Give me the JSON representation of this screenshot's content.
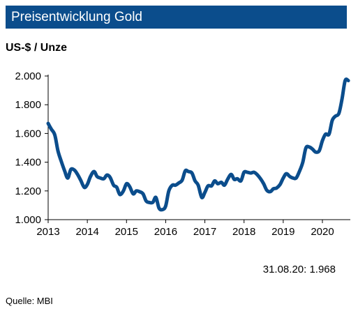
{
  "chart_data": {
    "type": "line",
    "title": "Preisentwicklung Gold",
    "ylabel": "US-$ / Unze",
    "ylim": [
      1000,
      2000
    ],
    "yticks": [
      1000,
      1200,
      1400,
      1600,
      1800,
      2000
    ],
    "ytick_labels": [
      "1.000",
      "1.200",
      "1.400",
      "1.600",
      "1.800",
      "2.000"
    ],
    "xlim": [
      2013.0,
      2020.67
    ],
    "xticks": [
      2013,
      2014,
      2015,
      2016,
      2017,
      2018,
      2019,
      2020
    ],
    "xtick_labels": [
      "2013",
      "2014",
      "2015",
      "2016",
      "2017",
      "2018",
      "2019",
      "2020"
    ],
    "grid": false,
    "legend": "none",
    "series": [
      {
        "color": "#0b4d8c",
        "x": [
          2013.0,
          2013.08,
          2013.17,
          2013.25,
          2013.33,
          2013.42,
          2013.5,
          2013.58,
          2013.67,
          2013.75,
          2013.83,
          2013.92,
          2014.0,
          2014.08,
          2014.17,
          2014.25,
          2014.33,
          2014.42,
          2014.5,
          2014.58,
          2014.67,
          2014.75,
          2014.83,
          2014.92,
          2015.0,
          2015.08,
          2015.17,
          2015.25,
          2015.33,
          2015.42,
          2015.5,
          2015.58,
          2015.67,
          2015.75,
          2015.83,
          2015.92,
          2016.0,
          2016.08,
          2016.17,
          2016.25,
          2016.33,
          2016.42,
          2016.5,
          2016.58,
          2016.67,
          2016.75,
          2016.83,
          2016.92,
          2017.0,
          2017.08,
          2017.17,
          2017.25,
          2017.33,
          2017.42,
          2017.5,
          2017.58,
          2017.67,
          2017.75,
          2017.83,
          2017.92,
          2018.0,
          2018.08,
          2018.17,
          2018.25,
          2018.33,
          2018.42,
          2018.5,
          2018.58,
          2018.67,
          2018.75,
          2018.83,
          2018.92,
          2019.0,
          2019.08,
          2019.17,
          2019.25,
          2019.33,
          2019.42,
          2019.5,
          2019.58,
          2019.67,
          2019.75,
          2019.83,
          2019.92,
          2020.0,
          2020.08,
          2020.17,
          2020.25,
          2020.33,
          2020.42,
          2020.5,
          2020.58,
          2020.66
        ],
        "values": [
          1670,
          1630,
          1590,
          1480,
          1410,
          1340,
          1290,
          1350,
          1345,
          1315,
          1275,
          1225,
          1245,
          1300,
          1335,
          1300,
          1290,
          1285,
          1310,
          1295,
          1240,
          1225,
          1175,
          1200,
          1250,
          1230,
          1180,
          1200,
          1195,
          1180,
          1130,
          1120,
          1120,
          1155,
          1080,
          1070,
          1095,
          1200,
          1240,
          1240,
          1255,
          1275,
          1340,
          1335,
          1325,
          1270,
          1240,
          1155,
          1190,
          1235,
          1235,
          1270,
          1250,
          1260,
          1240,
          1280,
          1315,
          1280,
          1285,
          1270,
          1330,
          1330,
          1325,
          1330,
          1315,
          1285,
          1250,
          1205,
          1195,
          1215,
          1220,
          1245,
          1290,
          1320,
          1300,
          1290,
          1290,
          1340,
          1400,
          1500,
          1505,
          1490,
          1470,
          1480,
          1550,
          1595,
          1595,
          1690,
          1720,
          1740,
          1840,
          1968,
          1968
        ]
      }
    ],
    "annotation": "31.08.20: 1.968"
  },
  "source": "Quelle: MBI"
}
